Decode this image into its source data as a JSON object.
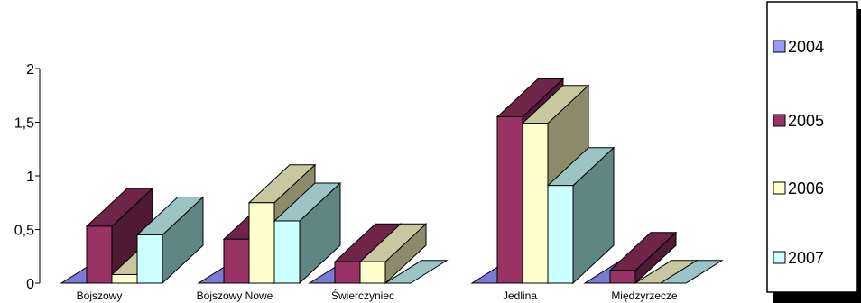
{
  "chart_data": {
    "type": "bar",
    "categories": [
      "Bojszowy",
      "Bojszowy Nowe",
      "Świerczyniec",
      "Jedlina",
      "Międzyrzecze"
    ],
    "series": [
      {
        "name": "2004",
        "values": [
          0,
          0,
          0,
          0,
          0
        ]
      },
      {
        "name": "2005",
        "values": [
          0.53,
          0.41,
          0.2,
          1.55,
          0.12
        ]
      },
      {
        "name": "2006",
        "values": [
          0.08,
          0.75,
          0.2,
          1.49,
          0
        ]
      },
      {
        "name": "2007",
        "values": [
          0.45,
          0.58,
          0,
          0.91,
          0
        ]
      }
    ],
    "yticks": [
      "0",
      "0,5",
      "1",
      "1,5",
      "2"
    ],
    "ylim": [
      0,
      2
    ],
    "title": "",
    "xlabel": "",
    "ylabel": "",
    "legend": "right",
    "grid": false,
    "colors": {
      "2004": {
        "front": "#9999FF",
        "side": "#5F5FA8",
        "top": "#7A7AD6"
      },
      "2005": {
        "front": "#993366",
        "side": "#4E1A36",
        "top": "#6E2549"
      },
      "2006": {
        "front": "#FFFFCC",
        "side": "#8C8C6A",
        "top": "#C8C8A0"
      },
      "2007": {
        "front": "#CCFFFF",
        "side": "#5F8585",
        "top": "#9CC4C4"
      }
    }
  }
}
